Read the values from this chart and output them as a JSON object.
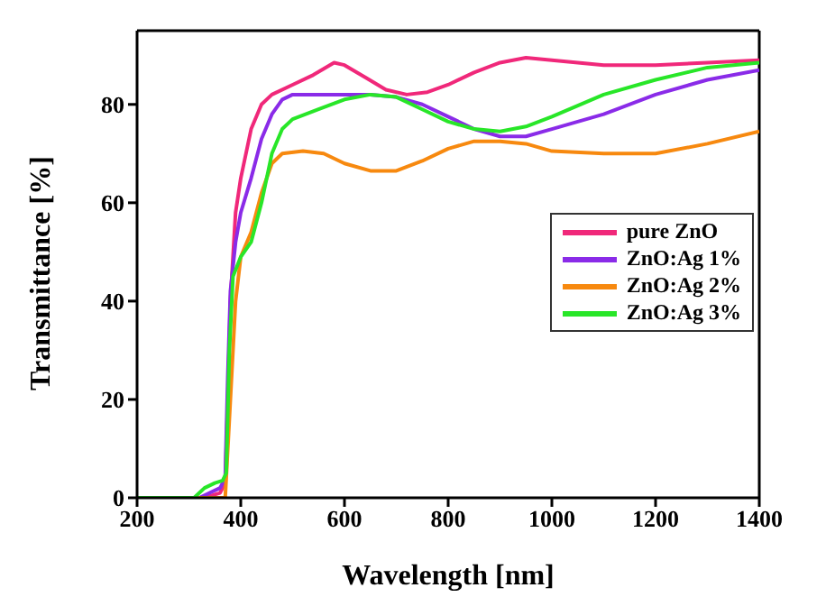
{
  "chart_data": {
    "type": "line",
    "xlabel": "Wavelength [nm]",
    "ylabel": "Transmittance [%]",
    "xlim": [
      200,
      1400
    ],
    "xticks": [
      200,
      400,
      600,
      800,
      1000,
      1200,
      1400
    ],
    "ylim": [
      0,
      95
    ],
    "yticks": [
      0,
      20,
      40,
      60,
      80
    ],
    "grid": false,
    "legend": "right",
    "marker": "none",
    "line_style": "solid",
    "series": [
      {
        "name": "pure ZnO",
        "color": "#f0287a",
        "x": [
          200,
          330,
          360,
          370,
          375,
          380,
          390,
          400,
          420,
          440,
          460,
          500,
          540,
          580,
          600,
          640,
          680,
          720,
          760,
          800,
          850,
          900,
          950,
          1000,
          1100,
          1200,
          1300,
          1400
        ],
        "values": [
          0,
          0,
          1,
          3,
          20,
          40,
          58,
          65,
          75,
          80,
          82,
          84,
          86,
          88.5,
          88,
          85.5,
          83,
          82,
          82.5,
          84,
          86.5,
          88.5,
          89.5,
          89,
          88,
          88,
          88.5,
          89
        ]
      },
      {
        "name": "ZnO:Ag 1%",
        "color": "#8a2be8",
        "x": [
          200,
          320,
          340,
          360,
          370,
          375,
          380,
          390,
          400,
          420,
          440,
          460,
          480,
          500,
          550,
          600,
          650,
          700,
          750,
          800,
          850,
          900,
          950,
          1000,
          1100,
          1200,
          1300,
          1400
        ],
        "values": [
          0,
          0,
          1,
          2,
          4,
          25,
          42,
          52,
          58,
          65,
          73,
          78,
          81,
          82,
          82,
          82,
          82,
          81.5,
          80,
          77.5,
          75,
          73.5,
          73.5,
          75,
          78,
          82,
          85,
          87
        ]
      },
      {
        "name": "ZnO:Ag 2%",
        "color": "#f7890f",
        "x": [
          200,
          370,
          380,
          390,
          400,
          420,
          440,
          460,
          480,
          520,
          560,
          600,
          650,
          700,
          750,
          800,
          850,
          900,
          950,
          1000,
          1100,
          1200,
          1300,
          1400
        ],
        "values": [
          0,
          0,
          20,
          40,
          49,
          54,
          62,
          68,
          70,
          70.5,
          70,
          68,
          66.5,
          66.5,
          68.5,
          71,
          72.5,
          72.5,
          72,
          70.5,
          70,
          70,
          72,
          74.5
        ]
      },
      {
        "name": "ZnO:Ag 3%",
        "color": "#28e628",
        "x": [
          200,
          310,
          330,
          350,
          365,
          372,
          378,
          385,
          400,
          420,
          440,
          460,
          480,
          500,
          550,
          600,
          650,
          700,
          750,
          800,
          850,
          900,
          950,
          1000,
          1100,
          1200,
          1300,
          1400
        ],
        "values": [
          0,
          0,
          2,
          3,
          3.5,
          5,
          30,
          45,
          49,
          52,
          60,
          70,
          75,
          77,
          79,
          81,
          82,
          81.5,
          79,
          76.5,
          75,
          74.5,
          75.5,
          77.5,
          82,
          85,
          87.5,
          88.5
        ]
      }
    ]
  }
}
